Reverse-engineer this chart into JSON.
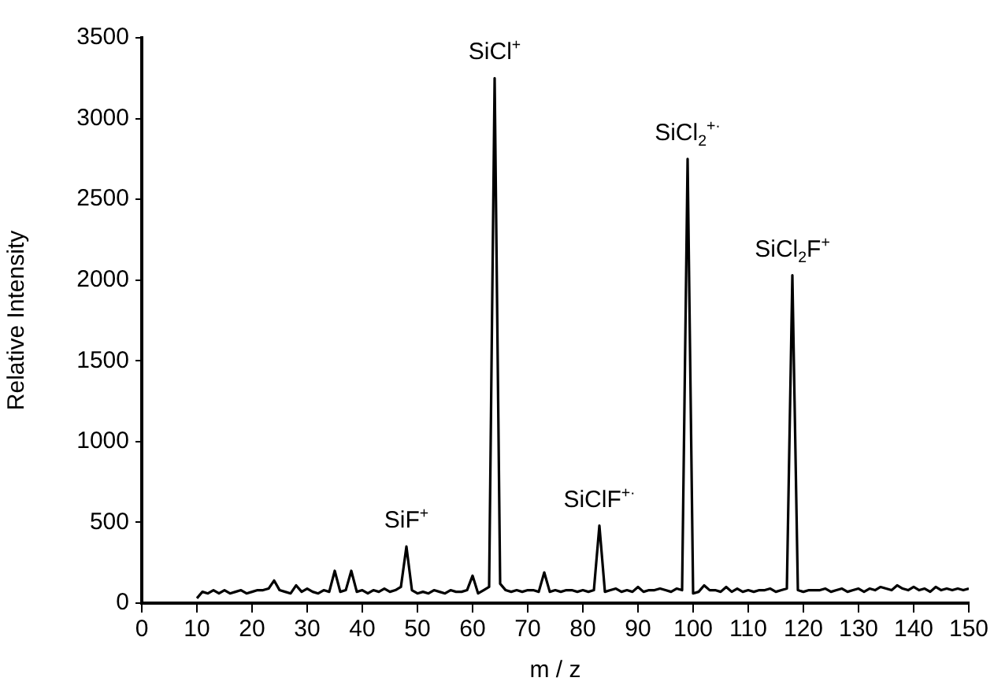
{
  "chart_data": {
    "type": "line",
    "xlabel": "m / z",
    "ylabel": "Relative Intensity",
    "x": [
      10,
      11,
      12,
      13,
      14,
      15,
      16,
      17,
      18,
      19,
      20,
      21,
      22,
      23,
      24,
      25,
      26,
      27,
      28,
      29,
      30,
      31,
      32,
      33,
      34,
      35,
      36,
      37,
      38,
      39,
      40,
      41,
      42,
      43,
      44,
      45,
      46,
      47,
      48,
      49,
      50,
      51,
      52,
      53,
      54,
      55,
      56,
      57,
      58,
      59,
      60,
      61,
      62,
      63,
      64,
      65,
      66,
      67,
      68,
      69,
      70,
      71,
      72,
      73,
      74,
      75,
      76,
      77,
      78,
      79,
      80,
      81,
      82,
      83,
      84,
      85,
      86,
      87,
      88,
      89,
      90,
      91,
      92,
      93,
      94,
      95,
      96,
      97,
      98,
      99,
      100,
      101,
      102,
      103,
      104,
      105,
      106,
      107,
      108,
      109,
      110,
      111,
      112,
      113,
      114,
      115,
      116,
      117,
      118,
      119,
      120,
      121,
      122,
      123,
      124,
      125,
      126,
      127,
      128,
      129,
      130,
      131,
      132,
      133,
      134,
      135,
      136,
      137,
      138,
      139,
      140,
      141,
      142,
      143,
      144,
      145,
      146,
      147,
      148,
      149,
      150
    ],
    "series": [
      {
        "color": "#000000",
        "values": [
          30,
          70,
          60,
          80,
          60,
          80,
          60,
          70,
          80,
          60,
          70,
          80,
          80,
          90,
          140,
          80,
          70,
          60,
          110,
          70,
          90,
          70,
          60,
          80,
          70,
          200,
          70,
          80,
          200,
          70,
          80,
          60,
          80,
          70,
          90,
          70,
          80,
          100,
          350,
          80,
          60,
          70,
          60,
          80,
          70,
          60,
          80,
          70,
          70,
          80,
          170,
          60,
          80,
          100,
          3250,
          120,
          80,
          70,
          80,
          70,
          80,
          80,
          70,
          190,
          70,
          80,
          70,
          80,
          80,
          70,
          80,
          70,
          80,
          480,
          70,
          80,
          90,
          70,
          80,
          70,
          100,
          70,
          80,
          80,
          90,
          80,
          70,
          90,
          80,
          2750,
          60,
          70,
          110,
          80,
          80,
          70,
          100,
          70,
          90,
          70,
          80,
          70,
          80,
          80,
          90,
          70,
          80,
          90,
          2030,
          80,
          70,
          80,
          80,
          80,
          90,
          70,
          80,
          90,
          70,
          80,
          90,
          70,
          90,
          80,
          100,
          90,
          80,
          110,
          90,
          80,
          100,
          80,
          90,
          70,
          100,
          80,
          90,
          80,
          90,
          80,
          90
        ]
      }
    ],
    "xlim": [
      0,
      150
    ],
    "xticks": [
      0,
      10,
      20,
      30,
      40,
      50,
      60,
      70,
      80,
      90,
      100,
      110,
      120,
      130,
      140,
      150
    ],
    "ylim": [
      0,
      3500
    ],
    "yticks": [
      0,
      500,
      1000,
      1500,
      2000,
      2500,
      3000,
      3500
    ],
    "grid": false,
    "marker": "none",
    "line_style": "solid",
    "annotations": [
      {
        "text": "SiF$^{+}$",
        "x": 48,
        "y": 350
      },
      {
        "text": "SiCl$^{+}$",
        "x": 64,
        "y": 3250
      },
      {
        "text": "SiClF$^{+·}$",
        "x": 83,
        "y": 480
      },
      {
        "text": "SiCl$_{2}$$^{+·}$",
        "x": 99,
        "y": 2750
      },
      {
        "text": "SiCl$_{2}$F$^{+}$",
        "x": 118,
        "y": 2030
      }
    ]
  }
}
